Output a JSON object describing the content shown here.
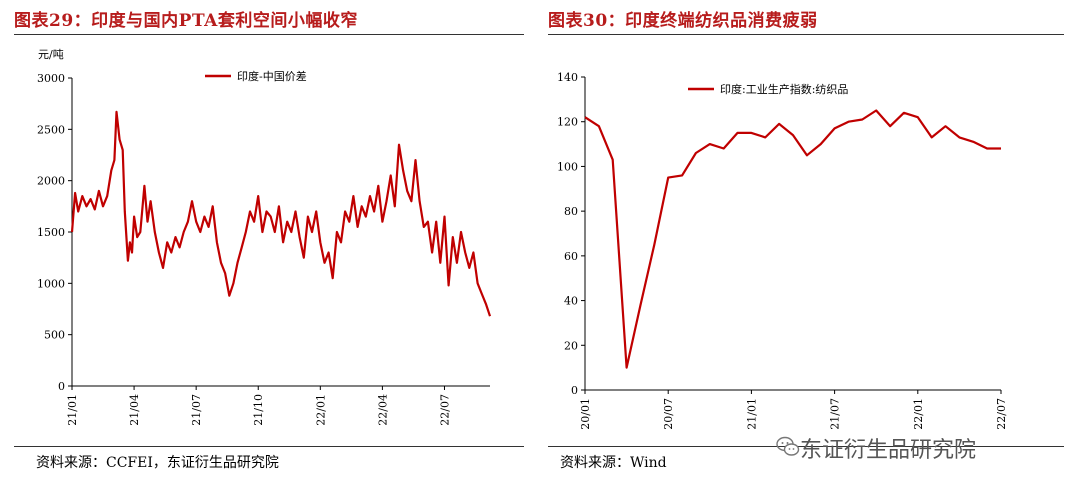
{
  "left_panel": {
    "title": "图表29：印度与国内PTA套利空间小幅收窄",
    "source": "资料来源：CCFEI，东证衍生品研究院"
  },
  "right_panel": {
    "title": "图表30：印度终端纺织品消费疲弱",
    "source": "资料来源：Wind"
  },
  "watermark": {
    "text": "东证衍生品研究院",
    "icon": "wechat-icon"
  },
  "colors": {
    "line": "#c00000",
    "title": "#b71c1c"
  },
  "chart_data": [
    {
      "type": "line",
      "ylabel": "元/吨",
      "ylim": [
        0,
        3000
      ],
      "yticks": [
        0,
        500,
        1000,
        1500,
        2000,
        2500,
        3000
      ],
      "xlim": [
        0,
        20.2
      ],
      "xticks": [
        {
          "label": "21/01",
          "x": 0
        },
        {
          "label": "21/04",
          "x": 3
        },
        {
          "label": "21/07",
          "x": 6
        },
        {
          "label": "21/10",
          "x": 9
        },
        {
          "label": "22/01",
          "x": 12
        },
        {
          "label": "22/04",
          "x": 15
        },
        {
          "label": "22/07",
          "x": 18
        }
      ],
      "legend": "top-left",
      "series": [
        {
          "name": "印度-中国价差",
          "x": [
            0,
            0.15,
            0.3,
            0.5,
            0.7,
            0.9,
            1.1,
            1.3,
            1.5,
            1.7,
            1.9,
            2.05,
            2.15,
            2.3,
            2.45,
            2.55,
            2.7,
            2.8,
            2.9,
            3.0,
            3.15,
            3.3,
            3.5,
            3.65,
            3.8,
            4.0,
            4.2,
            4.4,
            4.6,
            4.8,
            5.0,
            5.2,
            5.4,
            5.6,
            5.8,
            6.0,
            6.2,
            6.4,
            6.6,
            6.8,
            7.0,
            7.2,
            7.4,
            7.6,
            7.8,
            8.0,
            8.2,
            8.4,
            8.6,
            8.8,
            9.0,
            9.2,
            9.4,
            9.6,
            9.8,
            10.0,
            10.2,
            10.4,
            10.6,
            10.8,
            11.0,
            11.2,
            11.4,
            11.6,
            11.8,
            12.0,
            12.2,
            12.4,
            12.6,
            12.8,
            13.0,
            13.2,
            13.4,
            13.6,
            13.8,
            14.0,
            14.2,
            14.4,
            14.6,
            14.8,
            15.0,
            15.2,
            15.4,
            15.6,
            15.8,
            16.0,
            16.2,
            16.4,
            16.6,
            16.8,
            17.0,
            17.2,
            17.4,
            17.6,
            17.8,
            18.0,
            18.2,
            18.4,
            18.6,
            18.8,
            19.0,
            19.2,
            19.4,
            19.6,
            19.8,
            20.0,
            20.2
          ],
          "values": [
            1500,
            1880,
            1700,
            1850,
            1750,
            1820,
            1720,
            1900,
            1750,
            1850,
            2100,
            2200,
            2670,
            2400,
            2300,
            1700,
            1220,
            1400,
            1300,
            1650,
            1450,
            1500,
            1950,
            1600,
            1800,
            1500,
            1300,
            1150,
            1400,
            1300,
            1450,
            1350,
            1500,
            1600,
            1800,
            1600,
            1500,
            1650,
            1550,
            1750,
            1400,
            1200,
            1100,
            880,
            1000,
            1200,
            1350,
            1500,
            1700,
            1600,
            1850,
            1500,
            1700,
            1650,
            1500,
            1750,
            1400,
            1600,
            1500,
            1700,
            1450,
            1250,
            1650,
            1500,
            1700,
            1400,
            1200,
            1300,
            1050,
            1500,
            1400,
            1700,
            1600,
            1850,
            1550,
            1750,
            1650,
            1850,
            1700,
            1950,
            1600,
            1800,
            2050,
            1750,
            2350,
            2100,
            1900,
            1800,
            2200,
            1800,
            1550,
            1600,
            1300,
            1600,
            1200,
            1650,
            980,
            1450,
            1200,
            1500,
            1300,
            1150,
            1300,
            1000,
            900,
            800,
            680
          ]
        }
      ]
    },
    {
      "type": "line",
      "ylabel": "",
      "ylim": [
        0,
        140
      ],
      "yticks": [
        0,
        20,
        40,
        60,
        80,
        100,
        120,
        140
      ],
      "xlim": [
        0,
        30
      ],
      "xticks": [
        {
          "label": "20/01",
          "x": 0
        },
        {
          "label": "20/07",
          "x": 6
        },
        {
          "label": "21/01",
          "x": 12
        },
        {
          "label": "21/07",
          "x": 18
        },
        {
          "label": "22/01",
          "x": 24
        },
        {
          "label": "22/07",
          "x": 30
        }
      ],
      "legend": "top-left",
      "series": [
        {
          "name": "印度:工业生产指数:纺织品",
          "x": [
            0,
            1,
            2,
            3,
            4,
            5,
            6,
            7,
            8,
            9,
            10,
            11,
            12,
            13,
            14,
            15,
            16,
            17,
            18,
            19,
            20,
            21,
            22,
            23,
            24,
            25,
            26,
            27,
            28,
            29,
            30
          ],
          "values": [
            122,
            118,
            103,
            10,
            38,
            65,
            95,
            96,
            106,
            110,
            108,
            115,
            115,
            113,
            119,
            114,
            105,
            110,
            117,
            120,
            121,
            125,
            118,
            124,
            122,
            113,
            118,
            113,
            111,
            108,
            108
          ]
        }
      ]
    }
  ]
}
